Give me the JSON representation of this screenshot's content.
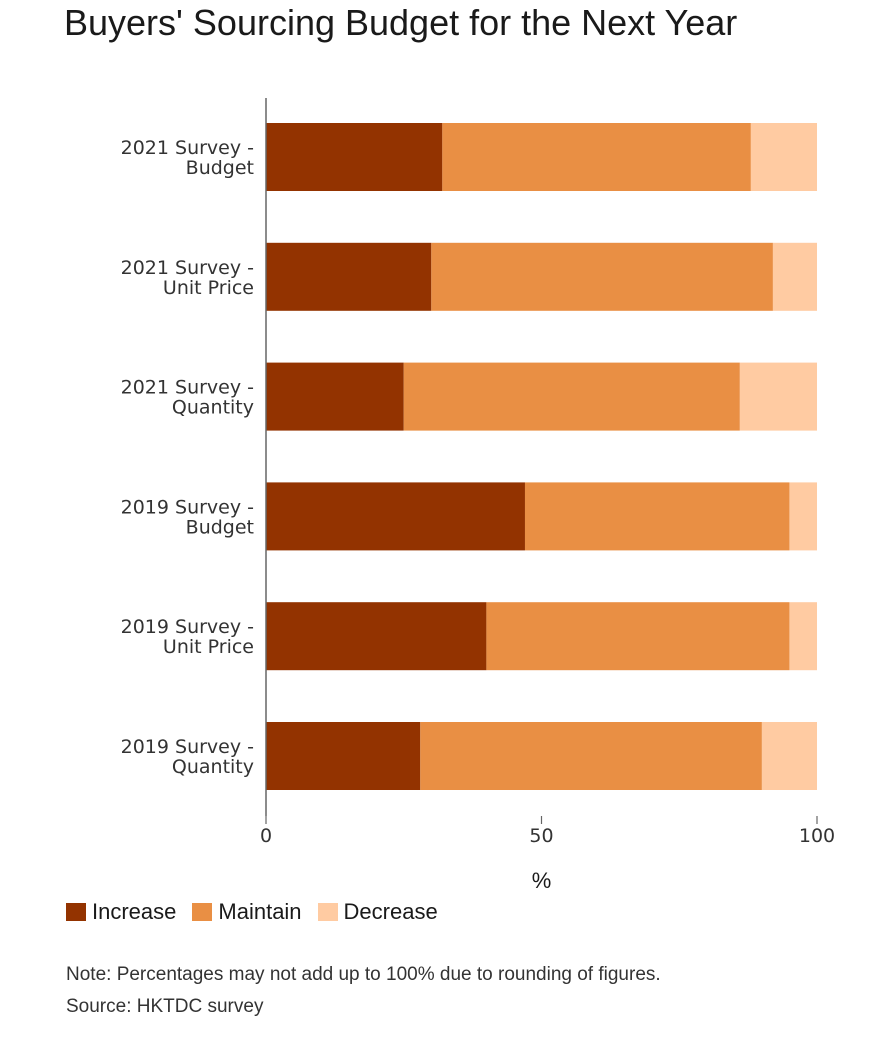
{
  "title": "Buyers' Sourcing Budget for the Next Year",
  "note": "Note: Percentages may not add up to 100% due to rounding of figures.",
  "source": "Source: HKTDC survey",
  "chart_data": {
    "type": "bar",
    "orientation": "horizontal",
    "stacked": true,
    "title": "Buyers' Sourcing Budget for the Next Year",
    "xlabel": "%",
    "ylabel": "",
    "xlim": [
      0,
      100
    ],
    "xticks": [
      0,
      50,
      100
    ],
    "grid": false,
    "legend_position": "bottom-left",
    "categories": [
      [
        "2021 Survey -",
        "Budget"
      ],
      [
        "2021 Survey -",
        "Unit Price"
      ],
      [
        "2021 Survey -",
        "Quantity"
      ],
      [
        "2019 Survey -",
        "Budget"
      ],
      [
        "2019 Survey -",
        "Unit Price"
      ],
      [
        "2019 Survey -",
        "Quantity"
      ]
    ],
    "series": [
      {
        "name": "Increase",
        "color": "#933300",
        "values": [
          32,
          30,
          25,
          47,
          40,
          28
        ]
      },
      {
        "name": "Maintain",
        "color": "#e98f44",
        "values": [
          56,
          62,
          61,
          48,
          55,
          62
        ]
      },
      {
        "name": "Decrease",
        "color": "#ffcba2",
        "values": [
          12,
          8,
          14,
          5,
          5,
          10
        ]
      }
    ]
  }
}
